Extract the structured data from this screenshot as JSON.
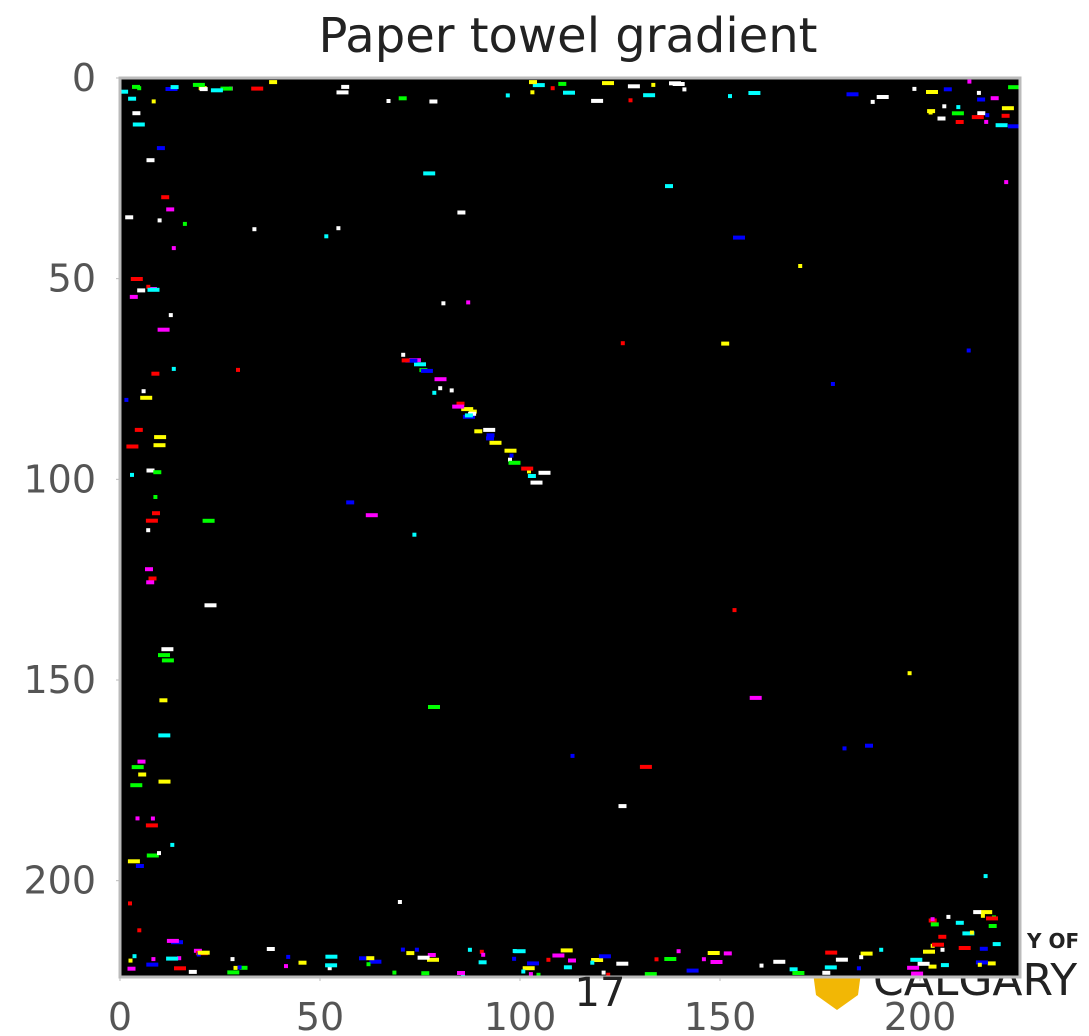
{
  "chart_data": {
    "type": "image",
    "title": "Paper towel gradient",
    "xlim": [
      0,
      225
    ],
    "ylim": [
      0,
      224
    ],
    "xticks": [
      0,
      50,
      100,
      150,
      200
    ],
    "yticks": [
      0,
      50,
      100,
      150,
      200
    ]
  },
  "slide": {
    "page_number": "17",
    "logo_top": "Y OF",
    "logo_bottom": "CALGARY"
  }
}
